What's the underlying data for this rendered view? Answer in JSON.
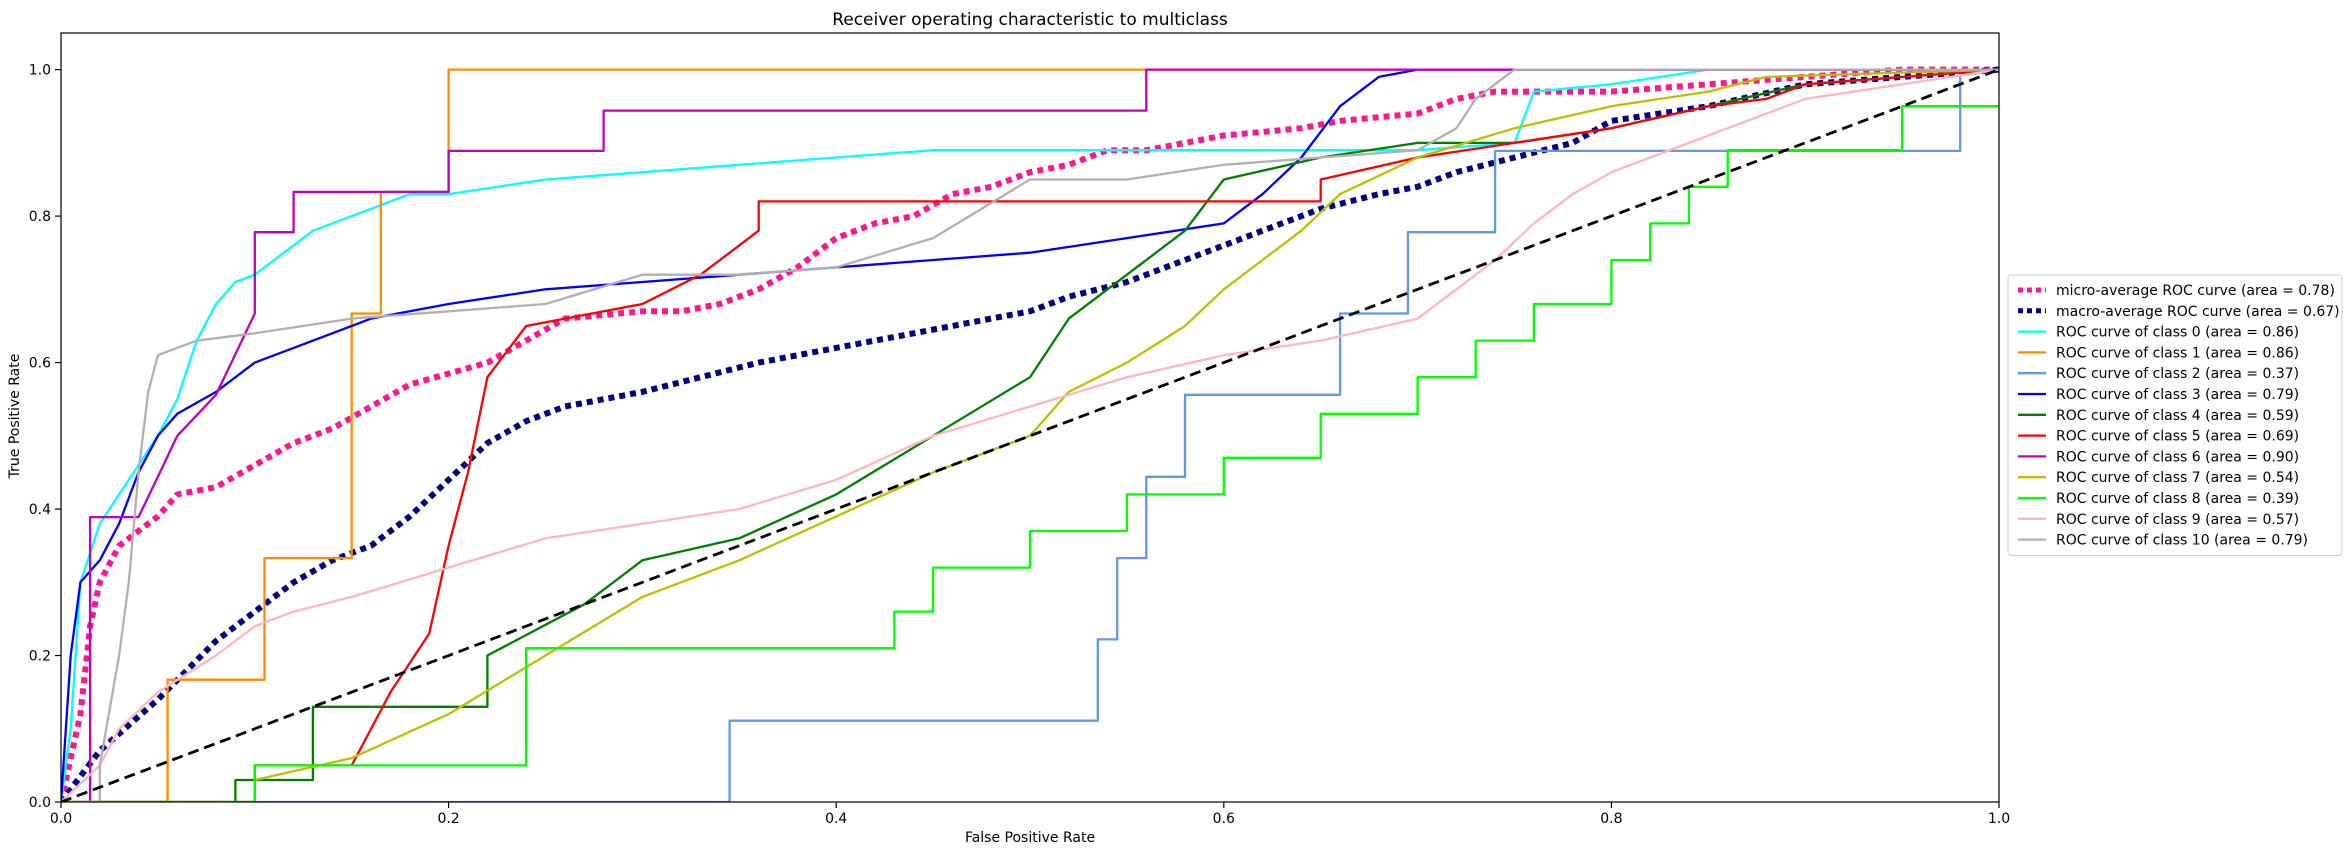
{
  "chart_data": {
    "type": "line",
    "title": "Receiver operating characteristic to multiclass",
    "xlabel": "False Positive Rate",
    "ylabel": "True Positive Rate",
    "xlim": [
      0.0,
      1.0
    ],
    "ylim": [
      0.0,
      1.05
    ],
    "xticks": [
      "0.0",
      "0.2",
      "0.4",
      "0.6",
      "0.8",
      "1.0"
    ],
    "yticks": [
      "0.0",
      "0.2",
      "0.4",
      "0.6",
      "0.8",
      "1.0"
    ],
    "grid": false,
    "legend_position": "center-right outside",
    "diagonal": {
      "x": [
        0,
        1
      ],
      "y": [
        0,
        1
      ],
      "color": "#000000",
      "dash": "dashed"
    },
    "series": [
      {
        "name": "micro-average ROC curve (area = 0.78)",
        "color": "#ff1493",
        "style": "dotted",
        "x": [
          0,
          0.01,
          0.015,
          0.02,
          0.03,
          0.04,
          0.05,
          0.06,
          0.08,
          0.1,
          0.12,
          0.14,
          0.16,
          0.18,
          0.2,
          0.22,
          0.24,
          0.26,
          0.28,
          0.3,
          0.32,
          0.34,
          0.36,
          0.38,
          0.4,
          0.42,
          0.44,
          0.46,
          0.48,
          0.5,
          0.52,
          0.54,
          0.56,
          0.58,
          0.6,
          0.62,
          0.64,
          0.66,
          0.68,
          0.7,
          0.72,
          0.74,
          0.76,
          0.8,
          0.85,
          0.9,
          0.95,
          1.0
        ],
        "y": [
          0.0,
          0.12,
          0.24,
          0.3,
          0.35,
          0.37,
          0.39,
          0.42,
          0.43,
          0.46,
          0.49,
          0.51,
          0.54,
          0.57,
          0.585,
          0.6,
          0.63,
          0.66,
          0.665,
          0.67,
          0.67,
          0.68,
          0.7,
          0.73,
          0.77,
          0.79,
          0.8,
          0.83,
          0.84,
          0.86,
          0.87,
          0.89,
          0.89,
          0.9,
          0.91,
          0.915,
          0.92,
          0.93,
          0.935,
          0.94,
          0.96,
          0.97,
          0.97,
          0.97,
          0.98,
          0.99,
          1.0,
          1.0
        ]
      },
      {
        "name": "macro-average ROC curve (area = 0.67)",
        "color": "#000080",
        "style": "dotted",
        "x": [
          0,
          0.02,
          0.05,
          0.08,
          0.1,
          0.12,
          0.14,
          0.16,
          0.18,
          0.2,
          0.22,
          0.24,
          0.26,
          0.28,
          0.3,
          0.33,
          0.36,
          0.4,
          0.44,
          0.48,
          0.5,
          0.52,
          0.55,
          0.58,
          0.6,
          0.62,
          0.65,
          0.68,
          0.7,
          0.72,
          0.75,
          0.78,
          0.8,
          0.85,
          0.9,
          0.95,
          1.0
        ],
        "y": [
          0.0,
          0.07,
          0.14,
          0.22,
          0.26,
          0.3,
          0.33,
          0.35,
          0.39,
          0.44,
          0.49,
          0.52,
          0.54,
          0.55,
          0.56,
          0.58,
          0.6,
          0.62,
          0.64,
          0.66,
          0.67,
          0.69,
          0.71,
          0.74,
          0.76,
          0.78,
          0.81,
          0.83,
          0.84,
          0.86,
          0.88,
          0.9,
          0.93,
          0.95,
          0.98,
          0.99,
          1.0
        ]
      },
      {
        "name": "ROC curve of class 0 (area = 0.86)",
        "color": "#00ffff",
        "style": "solid",
        "x": [
          0,
          0.005,
          0.01,
          0.02,
          0.03,
          0.04,
          0.05,
          0.06,
          0.07,
          0.08,
          0.09,
          0.1,
          0.11,
          0.12,
          0.13,
          0.14,
          0.15,
          0.16,
          0.17,
          0.18,
          0.2,
          0.25,
          0.3,
          0.35,
          0.4,
          0.45,
          0.5,
          0.6,
          0.7,
          0.75,
          0.76,
          0.8,
          0.85,
          1.0
        ],
        "y": [
          0,
          0.1,
          0.3,
          0.38,
          0.42,
          0.46,
          0.5,
          0.55,
          0.63,
          0.68,
          0.71,
          0.72,
          0.74,
          0.76,
          0.78,
          0.79,
          0.8,
          0.81,
          0.82,
          0.83,
          0.83,
          0.85,
          0.86,
          0.87,
          0.88,
          0.89,
          0.89,
          0.89,
          0.89,
          0.9,
          0.97,
          0.98,
          1.0,
          1.0
        ]
      },
      {
        "name": "ROC curve of class 1 (area = 0.86)",
        "color": "#ff8c00",
        "style": "solid",
        "x": [
          0,
          0.055,
          0.055,
          0.105,
          0.105,
          0.15,
          0.15,
          0.165,
          0.165,
          0.2,
          0.2,
          1.0
        ],
        "y": [
          0,
          0,
          0.167,
          0.167,
          0.333,
          0.333,
          0.667,
          0.667,
          0.833,
          0.833,
          1.0,
          1.0
        ]
      },
      {
        "name": "ROC curve of class 2 (area = 0.37)",
        "color": "#6495ed",
        "style": "solid",
        "x": [
          0,
          0.345,
          0.345,
          0.535,
          0.535,
          0.545,
          0.545,
          0.56,
          0.56,
          0.58,
          0.58,
          0.66,
          0.66,
          0.695,
          0.695,
          0.74,
          0.74,
          0.98,
          0.98,
          1.0
        ],
        "y": [
          0,
          0,
          0.111,
          0.111,
          0.222,
          0.222,
          0.333,
          0.333,
          0.444,
          0.444,
          0.556,
          0.556,
          0.667,
          0.667,
          0.778,
          0.778,
          0.889,
          0.889,
          1.0,
          1.0
        ]
      },
      {
        "name": "ROC curve of class 3 (area = 0.79)",
        "color": "#0000ff",
        "style": "solid",
        "x": [
          0,
          0.005,
          0.01,
          0.02,
          0.03,
          0.04,
          0.05,
          0.06,
          0.08,
          0.1,
          0.12,
          0.14,
          0.16,
          0.18,
          0.2,
          0.25,
          0.3,
          0.35,
          0.4,
          0.45,
          0.5,
          0.55,
          0.6,
          0.62,
          0.64,
          0.66,
          0.68,
          0.7,
          1.0
        ],
        "y": [
          0,
          0.2,
          0.3,
          0.33,
          0.38,
          0.45,
          0.5,
          0.53,
          0.56,
          0.6,
          0.62,
          0.64,
          0.66,
          0.67,
          0.68,
          0.7,
          0.71,
          0.72,
          0.73,
          0.74,
          0.75,
          0.77,
          0.79,
          0.83,
          0.88,
          0.95,
          0.99,
          1.0,
          1.0
        ]
      },
      {
        "name": "ROC curve of class 4 (area = 0.59)",
        "color": "#008000",
        "style": "solid",
        "x": [
          0,
          0.09,
          0.09,
          0.13,
          0.13,
          0.22,
          0.22,
          0.27,
          0.3,
          0.35,
          0.4,
          0.45,
          0.5,
          0.52,
          0.55,
          0.58,
          0.6,
          0.65,
          0.7,
          0.75,
          0.8,
          0.85,
          0.9,
          1.0
        ],
        "y": [
          0,
          0,
          0.03,
          0.03,
          0.13,
          0.13,
          0.2,
          0.27,
          0.33,
          0.36,
          0.42,
          0.5,
          0.58,
          0.66,
          0.72,
          0.78,
          0.85,
          0.88,
          0.9,
          0.9,
          0.92,
          0.95,
          0.98,
          1.0
        ]
      },
      {
        "name": "ROC curve of class 5 (area = 0.69)",
        "color": "#ff0000",
        "style": "solid",
        "x": [
          0,
          0.1,
          0.1,
          0.15,
          0.17,
          0.19,
          0.2,
          0.21,
          0.22,
          0.24,
          0.3,
          0.33,
          0.36,
          0.36,
          0.65,
          0.65,
          0.7,
          0.75,
          0.8,
          0.85,
          0.88,
          0.9,
          1.0
        ],
        "y": [
          0,
          0,
          0.05,
          0.05,
          0.15,
          0.23,
          0.35,
          0.45,
          0.58,
          0.65,
          0.68,
          0.72,
          0.78,
          0.82,
          0.82,
          0.85,
          0.88,
          0.9,
          0.92,
          0.95,
          0.96,
          0.98,
          1.0
        ]
      },
      {
        "name": "ROC curve of class 6 (area = 0.90)",
        "color": "#c000c0",
        "style": "solid",
        "x": [
          0,
          0.015,
          0.015,
          0.04,
          0.05,
          0.06,
          0.08,
          0.1,
          0.1,
          0.12,
          0.12,
          0.2,
          0.2,
          0.28,
          0.28,
          0.56,
          0.56,
          0.73,
          1.0
        ],
        "y": [
          0,
          0,
          0.389,
          0.389,
          0.444,
          0.5,
          0.556,
          0.667,
          0.778,
          0.778,
          0.833,
          0.833,
          0.889,
          0.889,
          0.944,
          0.944,
          1.0,
          1.0,
          1.0
        ]
      },
      {
        "name": "ROC curve of class 7 (area = 0.54)",
        "color": "#bfbf00",
        "style": "solid",
        "x": [
          0,
          0.1,
          0.1,
          0.15,
          0.2,
          0.25,
          0.3,
          0.35,
          0.4,
          0.45,
          0.5,
          0.52,
          0.55,
          0.58,
          0.6,
          0.62,
          0.64,
          0.66,
          0.7,
          0.75,
          0.8,
          0.85,
          0.88,
          1.0
        ],
        "y": [
          0,
          0,
          0.03,
          0.06,
          0.12,
          0.2,
          0.28,
          0.33,
          0.39,
          0.45,
          0.5,
          0.56,
          0.6,
          0.65,
          0.7,
          0.74,
          0.78,
          0.83,
          0.88,
          0.92,
          0.95,
          0.97,
          0.99,
          1.0
        ]
      },
      {
        "name": "ROC curve of class 8 (area = 0.39)",
        "color": "#00ff00",
        "style": "solid",
        "x": [
          0,
          0.1,
          0.1,
          0.24,
          0.24,
          0.43,
          0.43,
          0.45,
          0.45,
          0.5,
          0.5,
          0.55,
          0.55,
          0.6,
          0.6,
          0.65,
          0.65,
          0.7,
          0.7,
          0.73,
          0.73,
          0.76,
          0.76,
          0.8,
          0.8,
          0.82,
          0.82,
          0.84,
          0.84,
          0.86,
          0.86,
          0.95,
          0.95,
          1.0
        ],
        "y": [
          0,
          0,
          0.05,
          0.05,
          0.21,
          0.21,
          0.26,
          0.26,
          0.32,
          0.32,
          0.37,
          0.37,
          0.42,
          0.42,
          0.47,
          0.47,
          0.53,
          0.53,
          0.58,
          0.58,
          0.63,
          0.63,
          0.68,
          0.68,
          0.74,
          0.74,
          0.79,
          0.79,
          0.84,
          0.84,
          0.89,
          0.89,
          0.95,
          0.95
        ]
      },
      {
        "name": "ROC curve of class 9 (area = 0.57)",
        "color": "#ffb6c1",
        "style": "solid",
        "x": [
          0,
          0.02,
          0.03,
          0.05,
          0.08,
          0.1,
          0.12,
          0.15,
          0.2,
          0.25,
          0.3,
          0.35,
          0.4,
          0.45,
          0.5,
          0.55,
          0.6,
          0.65,
          0.7,
          0.72,
          0.74,
          0.76,
          0.78,
          0.8,
          0.85,
          0.9,
          1.0
        ],
        "y": [
          0,
          0.05,
          0.1,
          0.15,
          0.2,
          0.24,
          0.26,
          0.28,
          0.32,
          0.36,
          0.38,
          0.4,
          0.44,
          0.5,
          0.54,
          0.58,
          0.61,
          0.63,
          0.66,
          0.7,
          0.74,
          0.79,
          0.83,
          0.86,
          0.91,
          0.96,
          1.0
        ]
      },
      {
        "name": "ROC curve of class 10 (area = 0.79)",
        "color": "#b0b0b0",
        "style": "solid",
        "x": [
          0,
          0.02,
          0.02,
          0.03,
          0.035,
          0.04,
          0.045,
          0.05,
          0.07,
          0.1,
          0.15,
          0.2,
          0.25,
          0.3,
          0.35,
          0.4,
          0.45,
          0.5,
          0.55,
          0.6,
          0.65,
          0.7,
          0.72,
          0.73,
          0.75,
          1.0
        ],
        "y": [
          0,
          0,
          0.05,
          0.2,
          0.3,
          0.45,
          0.56,
          0.61,
          0.63,
          0.64,
          0.66,
          0.67,
          0.68,
          0.72,
          0.72,
          0.73,
          0.77,
          0.85,
          0.85,
          0.87,
          0.88,
          0.89,
          0.92,
          0.96,
          1.0,
          1.0
        ]
      }
    ]
  }
}
